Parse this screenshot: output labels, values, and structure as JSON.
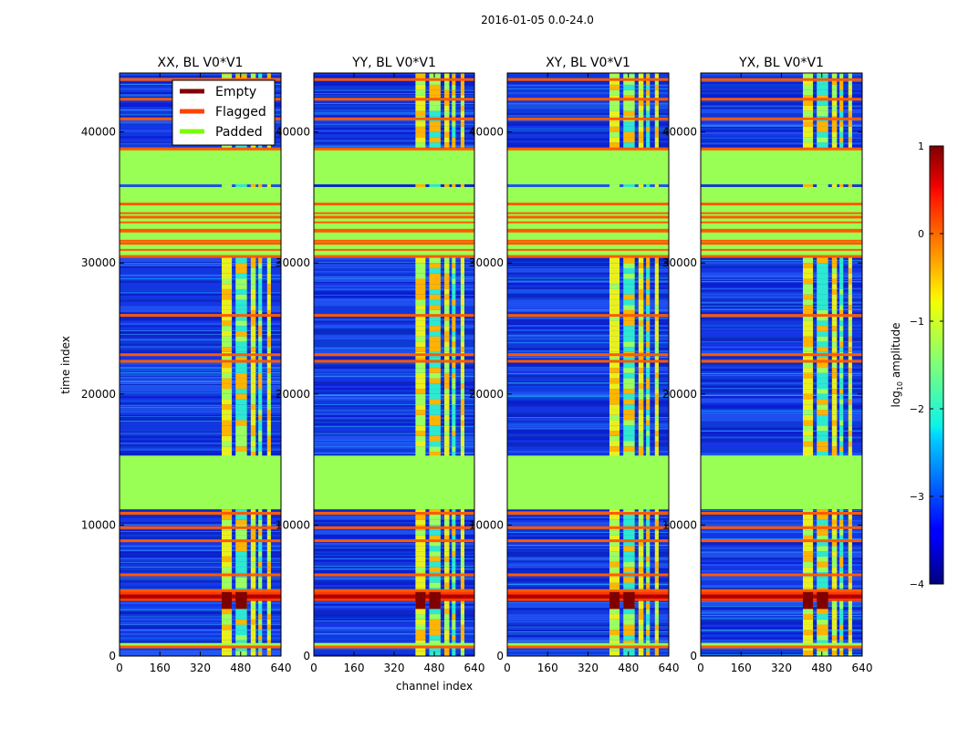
{
  "suptitle": "2016-01-05 0.0-24.0",
  "chart_data": {
    "type": "heatmap",
    "xlabel": "channel index",
    "ylabel": "time index",
    "xlim": [
      0,
      640
    ],
    "ylim": [
      0,
      44500
    ],
    "xticks": [
      0,
      160,
      320,
      480,
      640
    ],
    "yticks": [
      0,
      10000,
      20000,
      30000,
      40000
    ],
    "legend": {
      "location": "top-left of first panel",
      "entries": [
        {
          "label": "Empty",
          "color": "#800000"
        },
        {
          "label": "Flagged",
          "color": "#ff4500"
        },
        {
          "label": "Padded",
          "color": "#7cfc00"
        }
      ]
    },
    "panels": [
      {
        "title": "XX, BL V0*V1"
      },
      {
        "title": "YY, BL V0*V1"
      },
      {
        "title": "XY, BL V0*V1"
      },
      {
        "title": "YX, BL V0*V1"
      }
    ],
    "colorbar": {
      "label": "log$_{10}$ amplitude",
      "range": [
        -4,
        1
      ],
      "ticks": [
        1,
        0,
        -1,
        -2,
        -3,
        -4
      ],
      "tick_labels": [
        "1",
        "0",
        "−1",
        "−2",
        "−3",
        "−4"
      ],
      "colormap": "jet"
    },
    "padded_time_bands": [
      [
        600,
        1000
      ],
      [
        11200,
        15300
      ],
      [
        30500,
        35800
      ],
      [
        36000,
        38700
      ]
    ],
    "flagged_time_rows": [
      700,
      5000,
      6200,
      8800,
      9800,
      10900,
      22500,
      23000,
      26000,
      30500,
      31500,
      32500,
      33500,
      34500,
      38700,
      41000,
      42500,
      44000
    ],
    "bright_time_band": [
      4200,
      4900
    ],
    "rfi_channel_ranges": [
      [
        405,
        445
      ],
      [
        460,
        505
      ],
      [
        520,
        540
      ],
      [
        550,
        565
      ],
      [
        585,
        600
      ]
    ],
    "colors": {
      "padded": "#99ff55",
      "flagged": "#ff5a00",
      "empty": "#800000",
      "background_low": "#1030d8"
    }
  }
}
